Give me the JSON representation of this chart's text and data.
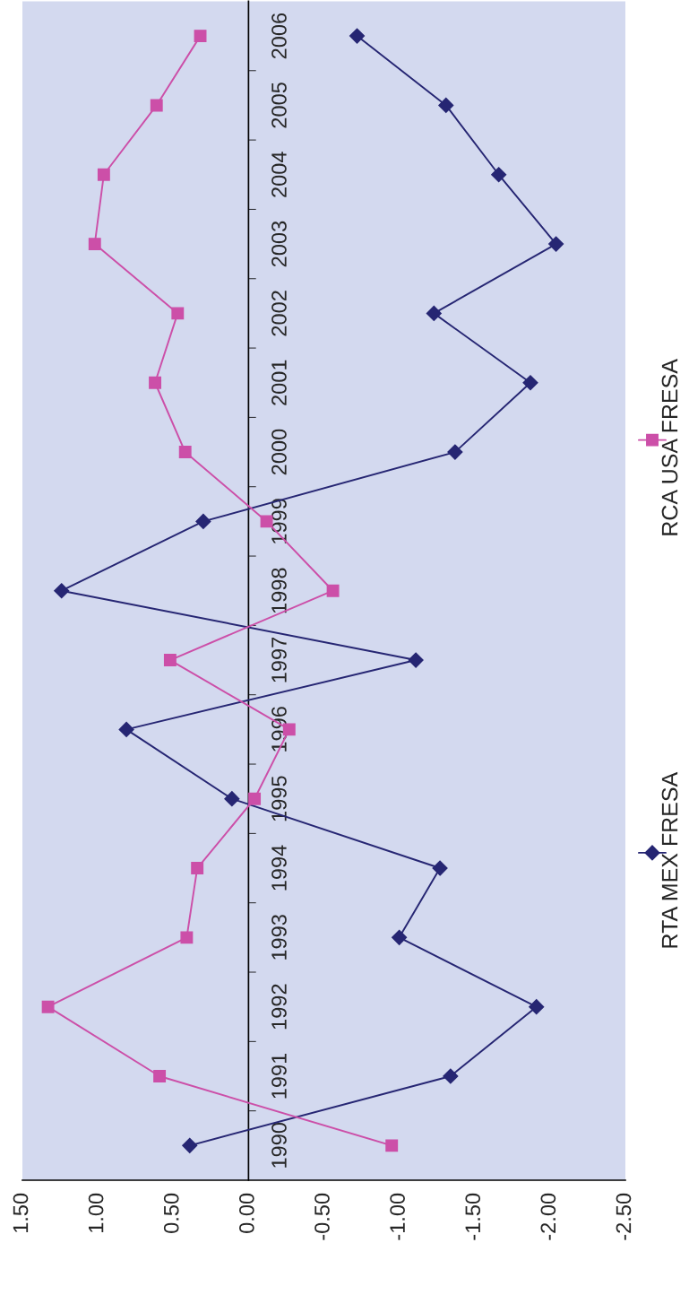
{
  "chart_data": {
    "type": "line",
    "orientation": "horizontal",
    "categories": [
      "2006",
      "2005",
      "2004",
      "2003",
      "2002",
      "2001",
      "2000",
      "1999",
      "1998",
      "1997",
      "1996",
      "1995",
      "1994",
      "1993",
      "1992",
      "1991",
      "1990"
    ],
    "series": [
      {
        "name": "RTA MEX FRESA",
        "color": "#262673",
        "marker": "diamond",
        "values": [
          -0.72,
          -1.31,
          -1.66,
          -2.04,
          -1.23,
          -1.87,
          -1.37,
          0.3,
          1.24,
          -1.11,
          0.81,
          0.11,
          -1.27,
          -1.0,
          -1.91,
          -1.34,
          0.39
        ]
      },
      {
        "name": "RCA USA FRESA",
        "color": "#cc4fa8",
        "marker": "square",
        "values": [
          0.32,
          0.61,
          0.96,
          1.02,
          0.47,
          0.62,
          0.42,
          -0.12,
          -0.56,
          0.52,
          -0.27,
          -0.04,
          0.34,
          0.41,
          1.33,
          0.59,
          -0.95
        ]
      }
    ],
    "xlim": [
      1.5,
      -2.5
    ],
    "xticks": [
      {
        "value": 1.5,
        "label": "1.50"
      },
      {
        "value": 1.0,
        "label": "1.00"
      },
      {
        "value": 0.5,
        "label": "0.50"
      },
      {
        "value": 0.0,
        "label": "0.00"
      },
      {
        "value": -0.5,
        "label": "-0.50"
      },
      {
        "value": -1.0,
        "label": "-1.00"
      },
      {
        "value": -1.5,
        "label": "-1.50"
      },
      {
        "value": -2.0,
        "label": "-2.00"
      },
      {
        "value": -2.5,
        "label": "-2.50"
      }
    ],
    "grid": false,
    "legend": "right"
  }
}
